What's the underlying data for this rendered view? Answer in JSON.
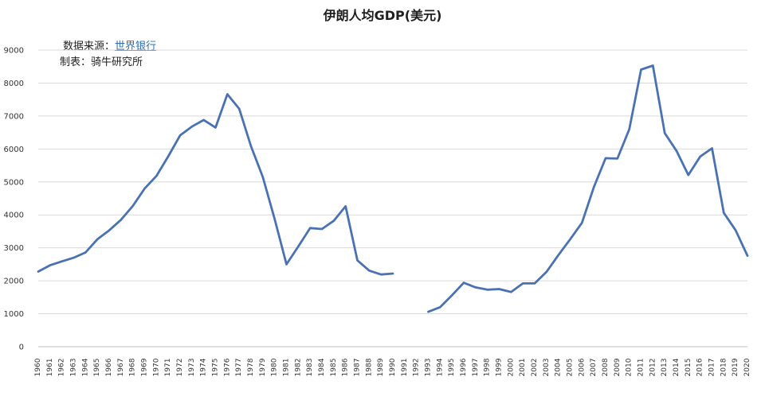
{
  "chart_data": {
    "type": "line",
    "title": "伊朗人均GDP(美元)",
    "xlabel": "",
    "ylabel": "",
    "ylim": [
      0,
      9000
    ],
    "yticks": [
      0,
      1000,
      2000,
      3000,
      4000,
      5000,
      6000,
      7000,
      8000,
      9000
    ],
    "grid": true,
    "line_color": "#4a72b2",
    "grid_color": "#d9d9d9",
    "categories": [
      "1960",
      "1961",
      "1962",
      "1963",
      "1964",
      "1965",
      "1966",
      "1967",
      "1968",
      "1969",
      "1970",
      "1971",
      "1972",
      "1973",
      "1974",
      "1975",
      "1976",
      "1977",
      "1978",
      "1979",
      "1980",
      "1981",
      "1982",
      "1983",
      "1984",
      "1985",
      "1986",
      "1987",
      "1988",
      "1989",
      "1990",
      "1991",
      "1992",
      "1993",
      "1994",
      "1995",
      "1996",
      "1997",
      "1998",
      "1999",
      "2000",
      "2001",
      "2002",
      "2003",
      "2004",
      "2005",
      "2006",
      "2007",
      "2008",
      "2009",
      "2010",
      "2011",
      "2012",
      "2013",
      "2014",
      "2015",
      "2016",
      "2017",
      "2018",
      "2019",
      "2020"
    ],
    "series": [
      {
        "values": [
          2280,
          2470,
          2590,
          2700,
          2860,
          3260,
          3530,
          3850,
          4270,
          4800,
          5180,
          5780,
          6410,
          6680,
          6880,
          6650,
          7660,
          7220,
          6080,
          5150,
          3870,
          2500,
          3040,
          3600,
          3570,
          3820,
          4260,
          2620,
          2310,
          2190,
          2220,
          null,
          null,
          1060,
          1200,
          1560,
          1940,
          1800,
          1730,
          1750,
          1660,
          1920,
          1920,
          2270,
          2780,
          3260,
          3760,
          4840,
          5720,
          5710,
          6600,
          8410,
          8530,
          6480,
          5940,
          5210,
          5770,
          6020,
          4060,
          3530,
          2760
        ]
      }
    ]
  },
  "notes": {
    "source_label": "数据来源：",
    "source_link": "世界银行",
    "maker": "制表：骑牛研究所"
  }
}
